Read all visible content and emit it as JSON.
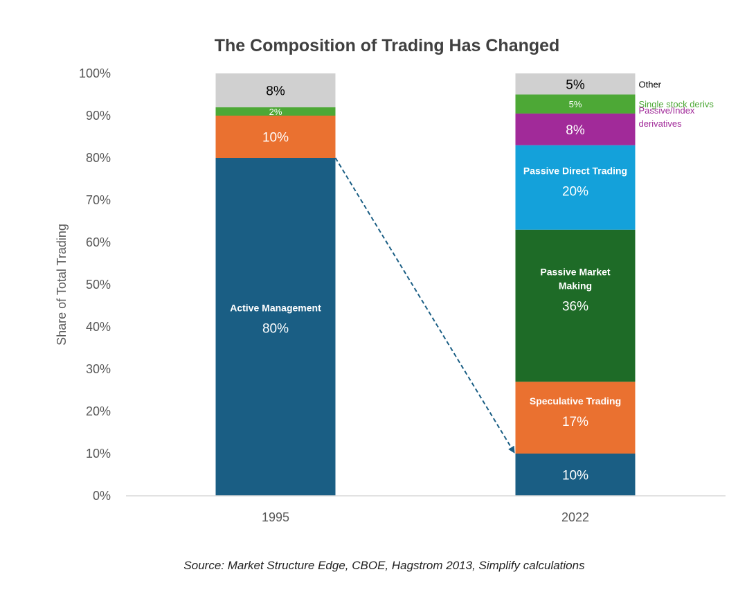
{
  "chart_data": {
    "type": "bar",
    "stacked": true,
    "title": "The Composition of Trading Has Changed",
    "ylabel": "Share of Total Trading",
    "xlabel": "",
    "ylim": [
      0,
      100
    ],
    "yticks": [
      "0%",
      "10%",
      "20%",
      "30%",
      "40%",
      "50%",
      "60%",
      "70%",
      "80%",
      "90%",
      "100%"
    ],
    "categories": [
      "1995",
      "2022"
    ],
    "colors": {
      "active": "#1a5e84",
      "speculative": "#ea7130",
      "market_making": "#1e6b27",
      "direct": "#14a1da",
      "index_derivs": "#a12a99",
      "single_stock": "#4da836",
      "other": "#d0d0d0"
    },
    "series": [
      {
        "key": "active",
        "values": [
          80,
          10
        ],
        "labels": [
          "80%",
          "10%"
        ],
        "names": [
          "Active Management",
          ""
        ]
      },
      {
        "key": "speculative",
        "values": [
          10,
          17
        ],
        "labels": [
          "10%",
          "17%"
        ],
        "names": [
          "",
          "Speculative Trading"
        ]
      },
      {
        "key": "market_making",
        "values": [
          0,
          36
        ],
        "labels": [
          "",
          "36%"
        ],
        "names": [
          "",
          "Passive Market Making"
        ]
      },
      {
        "key": "direct",
        "values": [
          0,
          20
        ],
        "labels": [
          "",
          "20%"
        ],
        "names": [
          "",
          "Passive Direct Trading"
        ]
      },
      {
        "key": "index_derivs",
        "values": [
          0,
          7.5
        ],
        "labels": [
          "",
          "8%"
        ],
        "names": [
          "",
          ""
        ]
      },
      {
        "key": "single_stock",
        "values": [
          2,
          4.5
        ],
        "labels": [
          "2%",
          "5%"
        ],
        "names": [
          "",
          ""
        ]
      },
      {
        "key": "other",
        "values": [
          8,
          5
        ],
        "labels": [
          "8%",
          "5%"
        ],
        "names": [
          "",
          ""
        ]
      }
    ],
    "side_labels": [
      {
        "key": "other",
        "text": "Other",
        "color": "#000000"
      },
      {
        "key": "single_stock",
        "text": "Single stock derivs",
        "color": "#4da836"
      },
      {
        "key": "index_derivs",
        "text": "Passive/Index derivatives",
        "color": "#a12a99"
      }
    ],
    "annotation": "dashed arrow from top of 1995 Active Management to top of 2022 Active Management",
    "source": "Source: Market Structure Edge, CBOE, Hagstrom 2013, Simplify calculations"
  }
}
